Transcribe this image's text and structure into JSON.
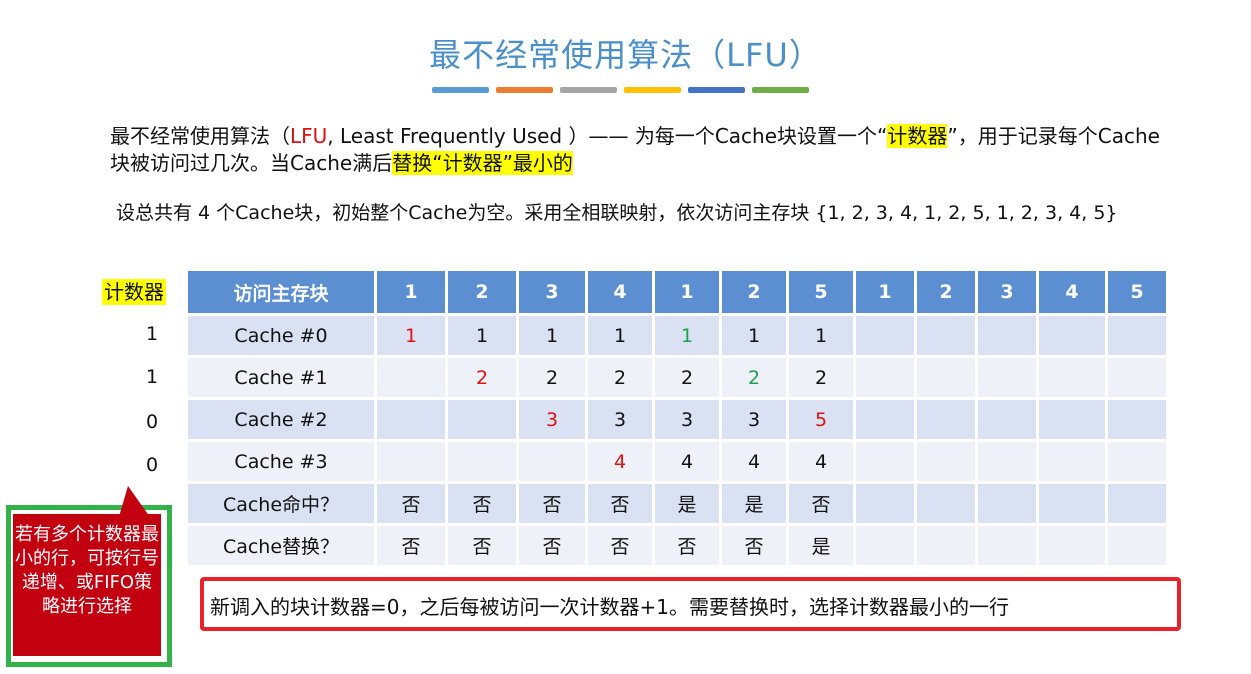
{
  "title": "最不经常使用算法（LFU）",
  "deco_colors": [
    "#5b9bd5",
    "#ed7d31",
    "#a5a5a5",
    "#ffc000",
    "#4472c4",
    "#70ad47"
  ],
  "para1": {
    "t1": "最不经常使用算法（",
    "t2": "LFU",
    "t3": ", Least Frequently Used ）—— 为每一个Cache块设置一个“",
    "t4": "计数器",
    "t5": "”，用于记录每个Cache块被访问过几次。当Cache满后",
    "t6": "替换“计数器”最小的"
  },
  "para2": "设总共有 4 个Cache块，初始整个Cache为空。采用全相联映射，依次访问主存块 {1, 2, 3, 4, 1, 2, 5, 1, 2, 3, 4, 5}",
  "counter_label": "计数器",
  "counters": [
    "1",
    "1",
    "0",
    "0"
  ],
  "table": {
    "header_label": "访问主存块",
    "access_sequence": [
      "1",
      "2",
      "3",
      "4",
      "1",
      "2",
      "5",
      "1",
      "2",
      "3",
      "4",
      "5"
    ],
    "rows": [
      {
        "label": "Cache #0",
        "cells": [
          "1",
          "1",
          "1",
          "1",
          "1",
          "1",
          "1",
          "",
          "",
          "",
          "",
          ""
        ]
      },
      {
        "label": "Cache #1",
        "cells": [
          "",
          "2",
          "2",
          "2",
          "2",
          "2",
          "2",
          "",
          "",
          "",
          "",
          ""
        ]
      },
      {
        "label": "Cache #2",
        "cells": [
          "",
          "",
          "3",
          "3",
          "3",
          "3",
          "5",
          "",
          "",
          "",
          "",
          ""
        ]
      },
      {
        "label": "Cache #3",
        "cells": [
          "",
          "",
          "",
          "4",
          "4",
          "4",
          "4",
          "",
          "",
          "",
          "",
          ""
        ]
      },
      {
        "label": "Cache命中？",
        "cells": [
          "否",
          "否",
          "否",
          "否",
          "是",
          "是",
          "否",
          "",
          "",
          "",
          "",
          ""
        ]
      },
      {
        "label": "Cache替换？",
        "cells": [
          "否",
          "否",
          "否",
          "否",
          "否",
          "否",
          "是",
          "",
          "",
          "",
          "",
          ""
        ]
      }
    ]
  },
  "note": "新调入的块计数器=0，之后每被访问一次计数器+1。需要替换时，选择计数器最小的一行",
  "callout": "若有多个计数器最小的行，可按行号递增、或FIFO策略进行选择"
}
